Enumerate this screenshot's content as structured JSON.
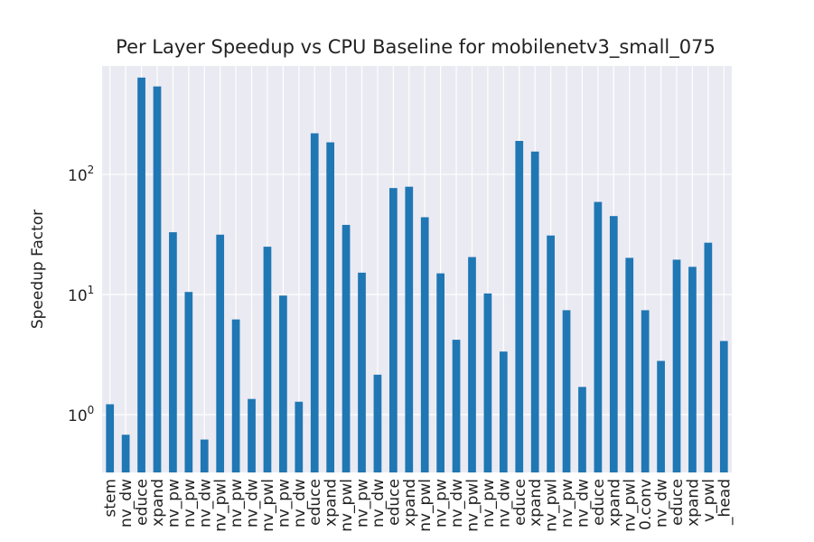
{
  "chart_data": {
    "type": "bar",
    "title": "Per Layer Speedup vs CPU Baseline for mobilenetv3_small_075",
    "xlabel": "",
    "ylabel": "Speedup Factor",
    "yscale": "log",
    "ylim": [
      0.33,
      800
    ],
    "yticks": [
      {
        "value": 1,
        "base": "10",
        "exp": "0"
      },
      {
        "value": 10,
        "base": "10",
        "exp": "1"
      },
      {
        "value": 100,
        "base": "10",
        "exp": "2"
      }
    ],
    "grid": true,
    "bar_color": "#1f77b4",
    "background_color": "#eaeaf2",
    "categories": [
      "stem",
      "nv_dw",
      "educe",
      "xpand",
      "nv_pw",
      "nv_pw",
      "nv_dw",
      "nv_pwl",
      "nv_pw",
      "nv_dw",
      "nv_pwl",
      "nv_pw",
      "nv_dw",
      "educe",
      "xpand",
      "nv_pwl",
      "nv_pw",
      "nv_dw",
      "educe",
      "xpand",
      "nv_pwl",
      "nv_pw",
      "nv_dw",
      "nv_pwl",
      "nv_pw",
      "nv_dw",
      "educe",
      "xpand",
      "nv_pwl",
      "nv_pw",
      "nv_dw",
      "educe",
      "xpand",
      "nv_pwl",
      "0.conv",
      "nv_dw",
      "educe",
      "xpand",
      "v_pwl",
      "_head"
    ],
    "values": [
      1.22,
      0.68,
      640,
      540,
      33,
      10.5,
      0.62,
      31.5,
      6.2,
      1.35,
      25,
      9.8,
      1.28,
      220,
      185,
      38,
      15.2,
      2.15,
      77,
      79,
      44,
      15,
      4.2,
      20.5,
      10.2,
      3.35,
      190,
      155,
      31,
      7.4,
      1.7,
      59,
      45,
      20.2,
      7.4,
      2.8,
      19.5,
      17,
      27,
      4.1
    ]
  }
}
